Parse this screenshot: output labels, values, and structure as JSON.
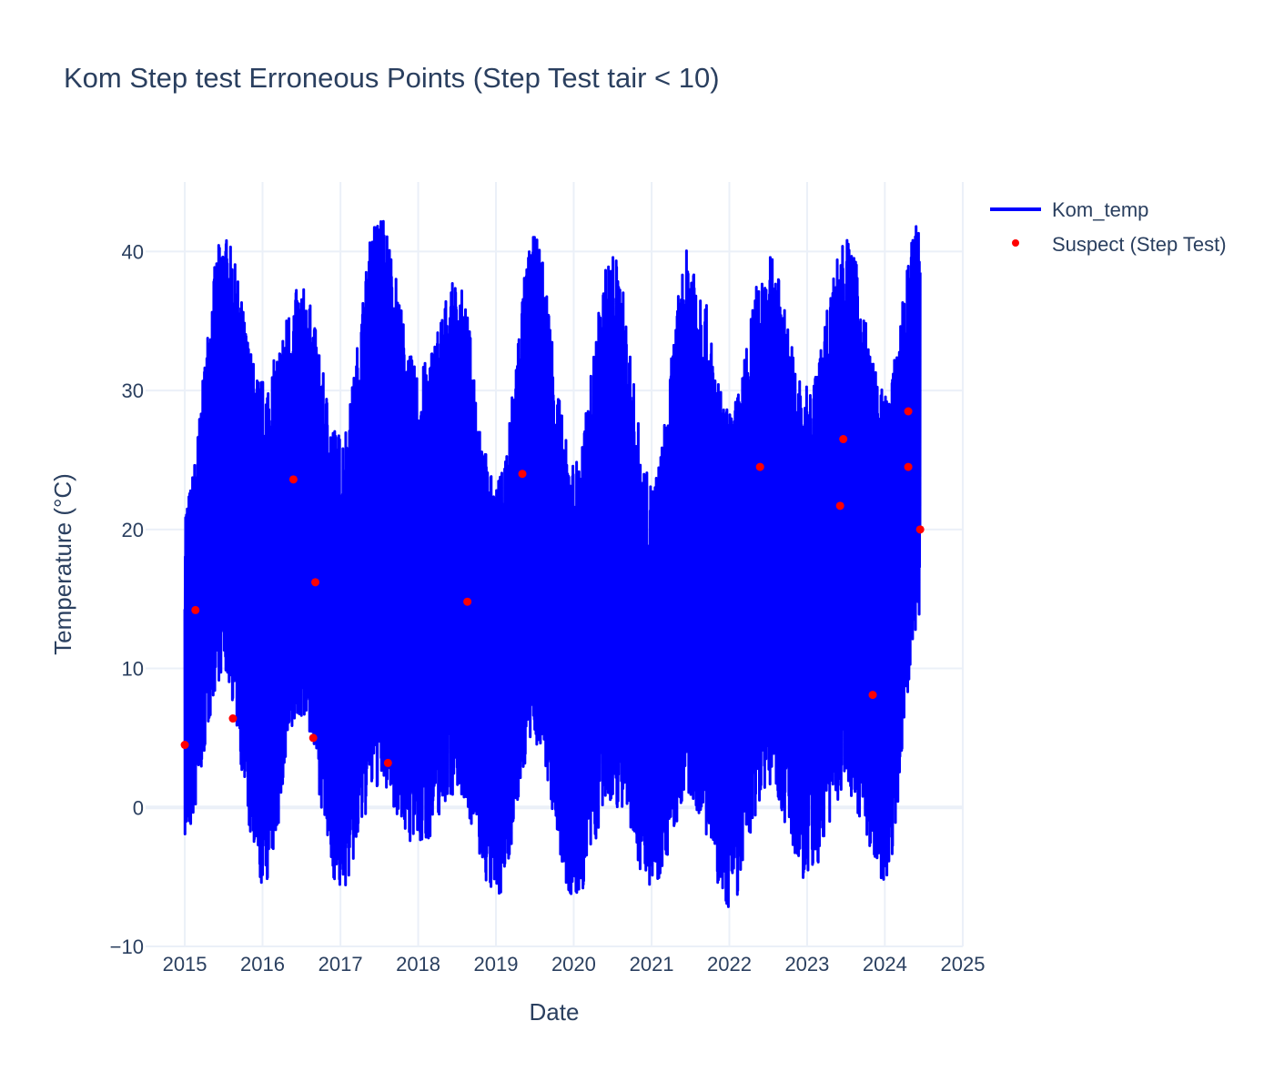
{
  "chart_data": {
    "type": "line",
    "title": "Kom Step test Erroneous Points (Step Test tair < 10)",
    "xlabel": "Date",
    "ylabel": "Temperature (°C)",
    "xlim": [
      "2014-07-01",
      "2025-01-01"
    ],
    "ylim": [
      -10,
      45
    ],
    "grid": true,
    "legend_position": "top-right, outside plot",
    "x_ticks": [
      "2015",
      "2016",
      "2017",
      "2018",
      "2019",
      "2020",
      "2021",
      "2022",
      "2023",
      "2024",
      "2025"
    ],
    "y_ticks": [
      "−10",
      "0",
      "10",
      "20",
      "30",
      "40"
    ],
    "colors": {
      "line": "#0000ff",
      "markers": "#ff0000",
      "grid": "#ebf0f8",
      "text": "#2a3f5f"
    },
    "series": [
      {
        "name": "Kom_temp",
        "type": "line",
        "color": "#0000ff",
        "x": [
          "2015-01-01",
          "2015-07-01",
          "2016-01-01",
          "2016-07-01",
          "2017-01-01",
          "2017-07-01",
          "2018-01-01",
          "2018-07-01",
          "2019-01-01",
          "2019-07-01",
          "2020-01-01",
          "2020-07-01",
          "2021-01-01",
          "2021-07-01",
          "2022-01-01",
          "2022-07-01",
          "2023-01-01",
          "2023-07-01",
          "2024-01-01",
          "2024-06-15"
        ],
        "y_min": [
          -2.3,
          9.5,
          -5.8,
          6.5,
          -6.1,
          1.3,
          -3.0,
          1.0,
          -6.6,
          4.5,
          -6.9,
          0.2,
          -5.6,
          0.3,
          -7.3,
          1.5,
          -5.4,
          1.0,
          -5.3,
          13.4
        ],
        "y_max": [
          22.2,
          41.2,
          30.9,
          37.5,
          27.0,
          42.9,
          31.6,
          37.9,
          23.4,
          41.1,
          25.0,
          40.0,
          23.5,
          40.5,
          28.7,
          39.9,
          30.3,
          41.1,
          30.0,
          42.7
        ]
      },
      {
        "name": "Suspect (Step Test)",
        "type": "scatter",
        "color": "#ff0000",
        "points": [
          {
            "x": "2015-01-01",
            "y": 4.5
          },
          {
            "x": "2015-02-20",
            "y": 14.2
          },
          {
            "x": "2015-08-15",
            "y": 6.4
          },
          {
            "x": "2016-05-25",
            "y": 23.6
          },
          {
            "x": "2016-08-26",
            "y": 5.0
          },
          {
            "x": "2016-09-05",
            "y": 16.2
          },
          {
            "x": "2017-08-12",
            "y": 3.2
          },
          {
            "x": "2018-08-20",
            "y": 14.8
          },
          {
            "x": "2019-05-05",
            "y": 24.0
          },
          {
            "x": "2022-05-25",
            "y": 24.5
          },
          {
            "x": "2023-06-05",
            "y": 21.7
          },
          {
            "x": "2023-06-20",
            "y": 26.5
          },
          {
            "x": "2023-11-05",
            "y": 8.1
          },
          {
            "x": "2024-04-20",
            "y": 28.5
          },
          {
            "x": "2024-04-20",
            "y": 24.5
          },
          {
            "x": "2024-06-15",
            "y": 20.0
          }
        ]
      }
    ]
  }
}
